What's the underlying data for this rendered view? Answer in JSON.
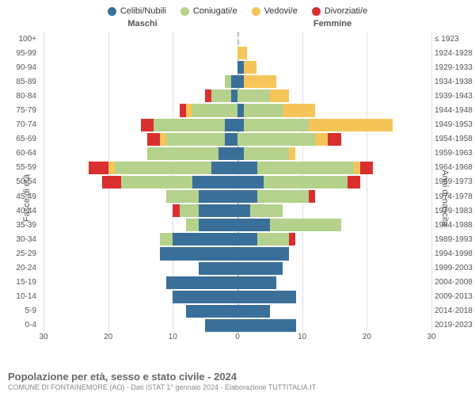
{
  "legend": [
    {
      "label": "Celibi/Nubili",
      "color": "#3a6f9a"
    },
    {
      "label": "Coniugati/e",
      "color": "#b4d28c"
    },
    {
      "label": "Vedovi/e",
      "color": "#f6c55a"
    },
    {
      "label": "Divorziati/e",
      "color": "#d92f2f"
    }
  ],
  "headers": {
    "male": "Maschi",
    "female": "Femmine"
  },
  "y_title_left": "Fasce di età",
  "y_title_right": "Anni di nascita",
  "x_max": 30,
  "x_ticks": [
    30,
    20,
    10,
    0,
    10,
    20,
    30
  ],
  "colors": {
    "grid": "#e0e0e0",
    "center": "#bbbbbb",
    "bg": "#ffffff"
  },
  "age_groups": [
    {
      "age": "100+",
      "birth": "≤ 1923",
      "m": [
        0,
        0,
        0,
        0
      ],
      "f": [
        0,
        0,
        0,
        0
      ]
    },
    {
      "age": "95-99",
      "birth": "1924-1928",
      "m": [
        0,
        0,
        0,
        0
      ],
      "f": [
        0,
        0,
        1.5,
        0
      ]
    },
    {
      "age": "90-94",
      "birth": "1929-1933",
      "m": [
        0,
        0,
        0,
        0
      ],
      "f": [
        1,
        0,
        2,
        0
      ]
    },
    {
      "age": "85-89",
      "birth": "1934-1938",
      "m": [
        1,
        1,
        0,
        0
      ],
      "f": [
        1,
        0,
        5,
        0
      ]
    },
    {
      "age": "80-84",
      "birth": "1939-1943",
      "m": [
        1,
        3,
        0,
        1
      ],
      "f": [
        0,
        5,
        3,
        0
      ]
    },
    {
      "age": "75-79",
      "birth": "1944-1948",
      "m": [
        0,
        7,
        1,
        1
      ],
      "f": [
        1,
        6,
        5,
        0
      ]
    },
    {
      "age": "70-74",
      "birth": "1949-1953",
      "m": [
        2,
        11,
        0,
        2
      ],
      "f": [
        1,
        10,
        13,
        0
      ]
    },
    {
      "age": "65-69",
      "birth": "1954-1958",
      "m": [
        2,
        9,
        1,
        2
      ],
      "f": [
        0,
        12,
        2,
        2
      ]
    },
    {
      "age": "60-64",
      "birth": "1959-1963",
      "m": [
        3,
        11,
        0,
        0
      ],
      "f": [
        1,
        7,
        1,
        0
      ]
    },
    {
      "age": "55-59",
      "birth": "1964-1968",
      "m": [
        4,
        15,
        1,
        3
      ],
      "f": [
        3,
        15,
        1,
        2
      ]
    },
    {
      "age": "50-54",
      "birth": "1969-1973",
      "m": [
        7,
        11,
        0,
        3
      ],
      "f": [
        4,
        13,
        0,
        2
      ]
    },
    {
      "age": "45-49",
      "birth": "1974-1978",
      "m": [
        6,
        5,
        0,
        0
      ],
      "f": [
        3,
        8,
        0,
        1
      ]
    },
    {
      "age": "40-44",
      "birth": "1979-1983",
      "m": [
        6,
        3,
        0,
        1
      ],
      "f": [
        2,
        5,
        0,
        0
      ]
    },
    {
      "age": "35-39",
      "birth": "1984-1988",
      "m": [
        6,
        2,
        0,
        0
      ],
      "f": [
        5,
        11,
        0,
        0
      ]
    },
    {
      "age": "30-34",
      "birth": "1989-1993",
      "m": [
        10,
        2,
        0,
        0
      ],
      "f": [
        3,
        5,
        0,
        1
      ]
    },
    {
      "age": "25-29",
      "birth": "1994-1998",
      "m": [
        12,
        0,
        0,
        0
      ],
      "f": [
        8,
        0,
        0,
        0
      ]
    },
    {
      "age": "20-24",
      "birth": "1999-2003",
      "m": [
        6,
        0,
        0,
        0
      ],
      "f": [
        7,
        0,
        0,
        0
      ]
    },
    {
      "age": "15-19",
      "birth": "2004-2008",
      "m": [
        11,
        0,
        0,
        0
      ],
      "f": [
        6,
        0,
        0,
        0
      ]
    },
    {
      "age": "10-14",
      "birth": "2009-2013",
      "m": [
        10,
        0,
        0,
        0
      ],
      "f": [
        9,
        0,
        0,
        0
      ]
    },
    {
      "age": "5-9",
      "birth": "2014-2018",
      "m": [
        8,
        0,
        0,
        0
      ],
      "f": [
        5,
        0,
        0,
        0
      ]
    },
    {
      "age": "0-4",
      "birth": "2019-2023",
      "m": [
        5,
        0,
        0,
        0
      ],
      "f": [
        9,
        0,
        0,
        0
      ]
    }
  ],
  "title": "Popolazione per età, sesso e stato civile - 2024",
  "subtitle": "COMUNE DI FONTAINEMORE (AO) - Dati ISTAT 1° gennaio 2024 - Elaborazione TUTTITALIA.IT"
}
